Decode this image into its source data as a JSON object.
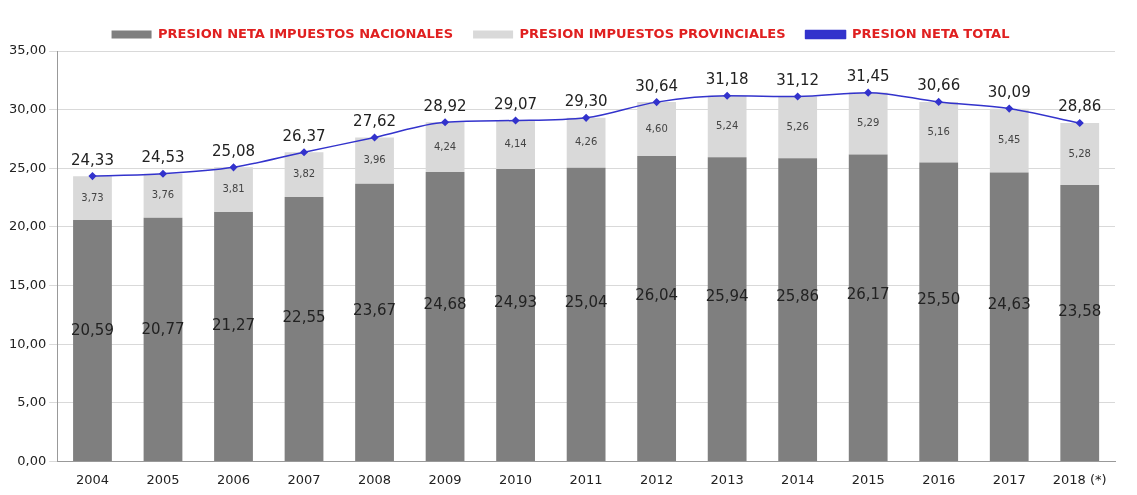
{
  "chart_data": {
    "type": "bar",
    "stacked": true,
    "categories": [
      "2004",
      "2005",
      "2006",
      "2007",
      "2008",
      "2009",
      "2010",
      "2011",
      "2012",
      "2013",
      "2014",
      "2015",
      "2016",
      "2017",
      "2018 (*)"
    ],
    "series": [
      {
        "name": "PRESION NETA IMPUESTOS NACIONALES",
        "color": "#7f7f7f",
        "values": [
          20.59,
          20.77,
          21.27,
          22.55,
          23.67,
          24.68,
          24.93,
          25.04,
          26.04,
          25.94,
          25.86,
          26.17,
          25.5,
          24.63,
          23.58
        ],
        "value_labels": [
          "20,59",
          "20,77",
          "21,27",
          "22,55",
          "23,67",
          "24,68",
          "24,93",
          "25,04",
          "26,04",
          "25,94",
          "25,86",
          "26,17",
          "25,50",
          "24,63",
          "23,58"
        ]
      },
      {
        "name": "PRESION IMPUESTOS PROVINCIALES",
        "color": "#d9d9d9",
        "values": [
          3.73,
          3.76,
          3.81,
          3.82,
          3.96,
          4.24,
          4.14,
          4.26,
          4.6,
          5.24,
          5.26,
          5.29,
          5.16,
          5.45,
          5.28
        ],
        "value_labels": [
          "3,73",
          "3,76",
          "3,81",
          "3,82",
          "3,96",
          "4,24",
          "4,14",
          "4,26",
          "4,60",
          "5,24",
          "5,26",
          "5,29",
          "5,16",
          "5,45",
          "5,28"
        ]
      },
      {
        "name": "PRESION NETA TOTAL",
        "type": "line",
        "color": "#3333cc",
        "marker": "diamond",
        "line_style": "solid",
        "values": [
          24.33,
          24.53,
          25.08,
          26.37,
          27.62,
          28.92,
          29.07,
          29.3,
          30.64,
          31.18,
          31.12,
          31.45,
          30.66,
          30.09,
          28.86
        ],
        "value_labels": [
          "24,33",
          "24,53",
          "25,08",
          "26,37",
          "27,62",
          "28,92",
          "29,07",
          "29,30",
          "30,64",
          "31,18",
          "31,12",
          "31,45",
          "30,66",
          "30,09",
          "28,86"
        ]
      }
    ],
    "ylim": [
      0,
      35
    ],
    "yticks": [
      {
        "value": 0,
        "label": "0,00"
      },
      {
        "value": 5,
        "label": "5,00"
      },
      {
        "value": 10,
        "label": "10,00"
      },
      {
        "value": 15,
        "label": "15,00"
      },
      {
        "value": 20,
        "label": "20,00"
      },
      {
        "value": 25,
        "label": "25,00"
      },
      {
        "value": 30,
        "label": "30,00"
      },
      {
        "value": 35,
        "label": "35,00"
      }
    ],
    "grid": "y",
    "legend": "top"
  }
}
